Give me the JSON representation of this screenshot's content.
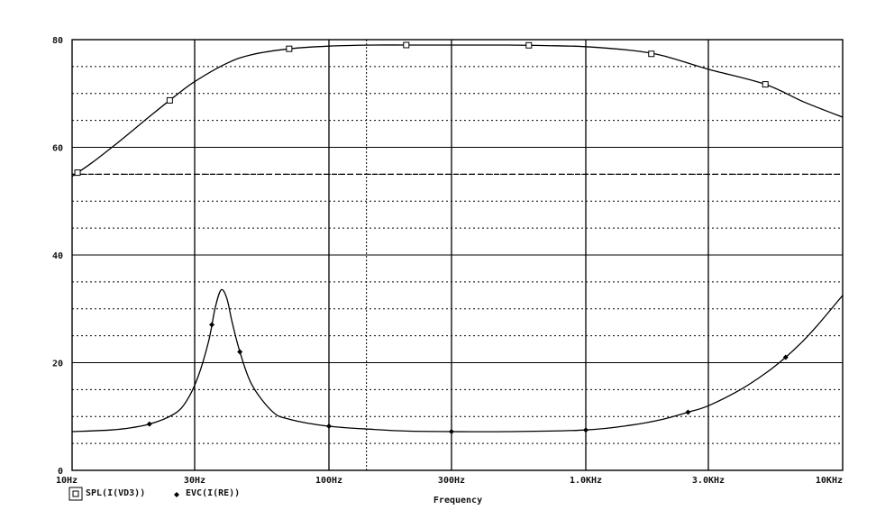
{
  "chart_data": {
    "type": "line",
    "xlabel": "Frequency",
    "x_scale": "log",
    "xlim": [
      10,
      10000
    ],
    "ylim": [
      0,
      80
    ],
    "grid": true,
    "x_ticks": [
      {
        "value": 10,
        "label": "10Hz"
      },
      {
        "value": 30,
        "label": "30Hz"
      },
      {
        "value": 100,
        "label": "100Hz"
      },
      {
        "value": 300,
        "label": "300Hz"
      },
      {
        "value": 1000,
        "label": "1.0KHz"
      },
      {
        "value": 3000,
        "label": "3.0KHz"
      },
      {
        "value": 10000,
        "label": "10KHz"
      }
    ],
    "y_ticks": [
      {
        "value": 0,
        "label": "0"
      },
      {
        "value": 20,
        "label": "20"
      },
      {
        "value": 40,
        "label": "40"
      },
      {
        "value": 60,
        "label": "60"
      },
      {
        "value": 80,
        "label": "80"
      }
    ],
    "cursor_lines": {
      "x": 140,
      "y": 55
    },
    "series": [
      {
        "name": "SPL(I(VD3))",
        "marker": "square",
        "markers_x": [
          10.5,
          24,
          70,
          200,
          600,
          1800,
          5000
        ],
        "x": [
          10,
          12,
          15,
          20,
          25,
          30,
          40,
          50,
          70,
          100,
          150,
          200,
          300,
          500,
          700,
          1000,
          1500,
          2000,
          3000,
          5000,
          7000,
          10000
        ],
        "y": [
          54.6,
          57.2,
          60.8,
          65.7,
          69.4,
          72.2,
          75.6,
          77.2,
          78.3,
          78.8,
          79.0,
          79.0,
          79.0,
          79.0,
          78.9,
          78.7,
          78.0,
          77.0,
          74.5,
          71.7,
          68.5,
          65.6
        ]
      },
      {
        "name": "EVC(I(RE))",
        "marker": "diamond",
        "markers_x": [
          20,
          35,
          45,
          100,
          300,
          1000,
          2500,
          6000
        ],
        "x": [
          10,
          15,
          20,
          25,
          28,
          31,
          34,
          36,
          38,
          40,
          42,
          45,
          50,
          60,
          70,
          100,
          150,
          200,
          300,
          500,
          1000,
          1500,
          2000,
          2500,
          3000,
          4000,
          5000,
          6000,
          7000,
          8000,
          10000
        ],
        "y": [
          7.2,
          7.6,
          8.6,
          10.5,
          13.0,
          17.5,
          24.0,
          30.0,
          33.5,
          32.0,
          27.5,
          22.0,
          16.0,
          11.0,
          9.5,
          8.2,
          7.6,
          7.3,
          7.2,
          7.2,
          7.5,
          8.4,
          9.5,
          10.8,
          12.0,
          15.0,
          18.0,
          21.0,
          24.0,
          27.0,
          32.5
        ]
      }
    ]
  }
}
